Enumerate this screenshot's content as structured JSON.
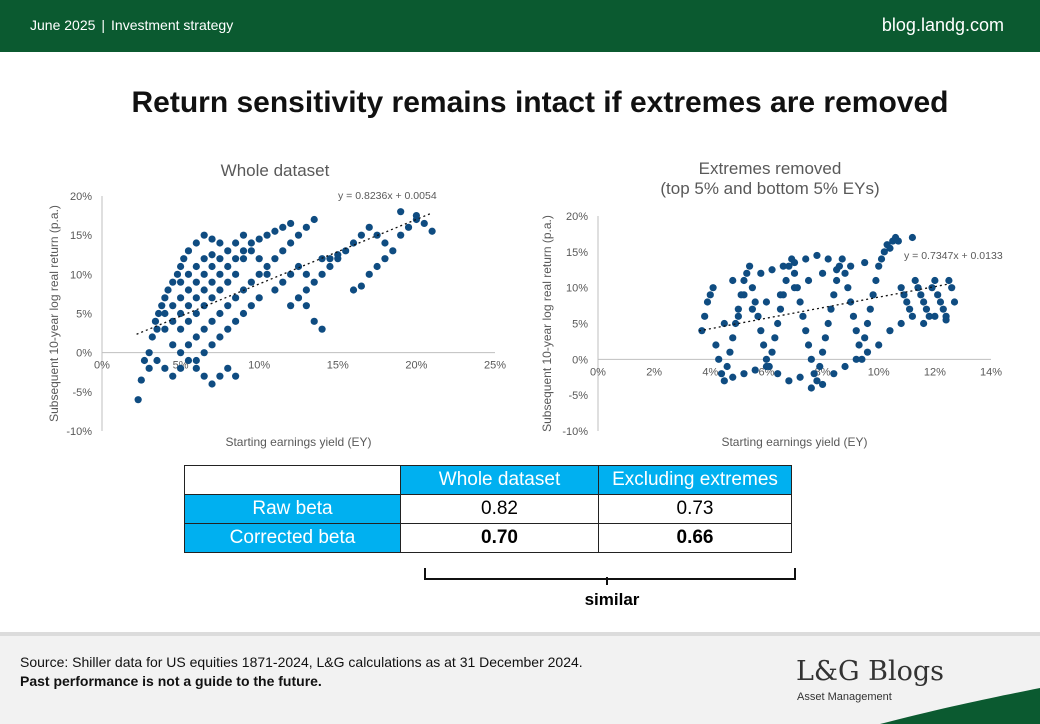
{
  "header": {
    "date": "June 2025",
    "section": "Investment strategy",
    "site": "blog.landg.com"
  },
  "title": "Return sensitivity remains intact if extremes are removed",
  "chart_data": [
    {
      "type": "scatter",
      "title": "Whole dataset",
      "xlabel": "Starting earnings yield (EY)",
      "ylabel": "Subsequent 10-year log real return (p.a.)",
      "xlim": [
        0,
        0.25
      ],
      "ylim": [
        -0.1,
        0.2
      ],
      "xticks": [
        "0%",
        "5%",
        "10%",
        "15%",
        "20%",
        "25%"
      ],
      "yticks": [
        "-10%",
        "-5%",
        "0%",
        "5%",
        "10%",
        "15%",
        "20%"
      ],
      "trendline": {
        "slope": 0.8236,
        "intercept": 0.0054,
        "x_range": [
          0.022,
          0.21
        ],
        "label": "y = 0.8236x + 0.0054"
      },
      "grid": false,
      "legend": "none",
      "color": "#0f4c81",
      "points": [
        [
          0.023,
          -0.06
        ],
        [
          0.025,
          -0.035
        ],
        [
          0.027,
          -0.01
        ],
        [
          0.03,
          0.0
        ],
        [
          0.032,
          0.02
        ],
        [
          0.034,
          0.04
        ],
        [
          0.036,
          0.05
        ],
        [
          0.038,
          0.06
        ],
        [
          0.04,
          0.07
        ],
        [
          0.042,
          0.08
        ],
        [
          0.045,
          0.09
        ],
        [
          0.048,
          0.1
        ],
        [
          0.05,
          0.11
        ],
        [
          0.052,
          0.12
        ],
        [
          0.055,
          0.13
        ],
        [
          0.045,
          0.06
        ],
        [
          0.05,
          0.07
        ],
        [
          0.055,
          0.08
        ],
        [
          0.06,
          0.09
        ],
        [
          0.065,
          0.1
        ],
        [
          0.07,
          0.11
        ],
        [
          0.075,
          0.12
        ],
        [
          0.08,
          0.13
        ],
        [
          0.085,
          0.14
        ],
        [
          0.09,
          0.15
        ],
        [
          0.06,
          0.05
        ],
        [
          0.065,
          0.06
        ],
        [
          0.07,
          0.07
        ],
        [
          0.075,
          0.08
        ],
        [
          0.08,
          0.09
        ],
        [
          0.085,
          0.1
        ],
        [
          0.05,
          0.03
        ],
        [
          0.055,
          0.04
        ],
        [
          0.06,
          0.02
        ],
        [
          0.065,
          0.03
        ],
        [
          0.07,
          0.04
        ],
        [
          0.075,
          0.05
        ],
        [
          0.08,
          0.06
        ],
        [
          0.085,
          0.07
        ],
        [
          0.09,
          0.08
        ],
        [
          0.095,
          0.09
        ],
        [
          0.1,
          0.1
        ],
        [
          0.105,
          0.11
        ],
        [
          0.11,
          0.12
        ],
        [
          0.115,
          0.13
        ],
        [
          0.12,
          0.14
        ],
        [
          0.125,
          0.15
        ],
        [
          0.13,
          0.16
        ],
        [
          0.135,
          0.17
        ],
        [
          0.11,
          0.08
        ],
        [
          0.115,
          0.09
        ],
        [
          0.12,
          0.1
        ],
        [
          0.125,
          0.11
        ],
        [
          0.13,
          0.1
        ],
        [
          0.135,
          0.09
        ],
        [
          0.14,
          0.1
        ],
        [
          0.145,
          0.11
        ],
        [
          0.15,
          0.12
        ],
        [
          0.155,
          0.13
        ],
        [
          0.16,
          0.14
        ],
        [
          0.165,
          0.15
        ],
        [
          0.17,
          0.16
        ],
        [
          0.175,
          0.15
        ],
        [
          0.18,
          0.14
        ],
        [
          0.185,
          0.13
        ],
        [
          0.19,
          0.15
        ],
        [
          0.195,
          0.16
        ],
        [
          0.2,
          0.17
        ],
        [
          0.205,
          0.165
        ],
        [
          0.21,
          0.155
        ],
        [
          0.19,
          0.18
        ],
        [
          0.2,
          0.175
        ],
        [
          0.17,
          0.1
        ],
        [
          0.175,
          0.11
        ],
        [
          0.18,
          0.12
        ],
        [
          0.16,
          0.08
        ],
        [
          0.165,
          0.085
        ],
        [
          0.13,
          0.06
        ],
        [
          0.135,
          0.04
        ],
        [
          0.14,
          0.03
        ],
        [
          0.03,
          -0.02
        ],
        [
          0.035,
          -0.01
        ],
        [
          0.04,
          -0.02
        ],
        [
          0.045,
          -0.03
        ],
        [
          0.05,
          -0.02
        ],
        [
          0.055,
          -0.01
        ],
        [
          0.06,
          -0.02
        ],
        [
          0.065,
          -0.03
        ],
        [
          0.07,
          -0.04
        ],
        [
          0.075,
          -0.03
        ],
        [
          0.08,
          -0.02
        ],
        [
          0.085,
          -0.03
        ],
        [
          0.06,
          0.14
        ],
        [
          0.065,
          0.15
        ],
        [
          0.07,
          0.145
        ],
        [
          0.075,
          0.14
        ],
        [
          0.09,
          0.12
        ],
        [
          0.095,
          0.13
        ],
        [
          0.1,
          0.12
        ],
        [
          0.105,
          0.1
        ],
        [
          0.1,
          0.07
        ],
        [
          0.095,
          0.06
        ],
        [
          0.09,
          0.05
        ],
        [
          0.085,
          0.04
        ],
        [
          0.08,
          0.03
        ],
        [
          0.075,
          0.02
        ],
        [
          0.07,
          0.01
        ],
        [
          0.065,
          0.0
        ],
        [
          0.06,
          -0.01
        ],
        [
          0.12,
          0.06
        ],
        [
          0.125,
          0.07
        ],
        [
          0.13,
          0.08
        ],
        [
          0.14,
          0.12
        ],
        [
          0.145,
          0.12
        ],
        [
          0.15,
          0.125
        ],
        [
          0.04,
          0.03
        ],
        [
          0.045,
          0.04
        ],
        [
          0.05,
          0.05
        ],
        [
          0.055,
          0.06
        ],
        [
          0.06,
          0.07
        ],
        [
          0.065,
          0.08
        ],
        [
          0.07,
          0.09
        ],
        [
          0.075,
          0.1
        ],
        [
          0.08,
          0.11
        ],
        [
          0.085,
          0.12
        ],
        [
          0.09,
          0.13
        ],
        [
          0.095,
          0.14
        ],
        [
          0.1,
          0.145
        ],
        [
          0.105,
          0.15
        ],
        [
          0.11,
          0.155
        ],
        [
          0.115,
          0.16
        ],
        [
          0.12,
          0.165
        ],
        [
          0.06,
          0.11
        ],
        [
          0.065,
          0.12
        ],
        [
          0.07,
          0.125
        ],
        [
          0.055,
          0.1
        ],
        [
          0.05,
          0.09
        ],
        [
          0.04,
          0.05
        ],
        [
          0.035,
          0.03
        ],
        [
          0.045,
          0.01
        ],
        [
          0.05,
          0.0
        ],
        [
          0.055,
          0.01
        ]
      ]
    },
    {
      "type": "scatter",
      "title": "Extremes removed",
      "subtitle": "(top 5% and bottom 5% EYs)",
      "xlabel": "Starting earnings yield (EY)",
      "ylabel": "Subsequent 10-year log real return (p.a.)",
      "xlim": [
        0,
        0.14
      ],
      "ylim": [
        -0.1,
        0.2
      ],
      "xticks": [
        "0%",
        "2%",
        "4%",
        "6%",
        "8%",
        "10%",
        "12%",
        "14%"
      ],
      "yticks": [
        "-10%",
        "-5%",
        "0%",
        "5%",
        "10%",
        "15%",
        "20%"
      ],
      "trendline": {
        "slope": 0.7347,
        "intercept": 0.0133,
        "x_range": [
          0.036,
          0.125
        ],
        "label": "y = 0.7347x + 0.0133"
      },
      "grid": false,
      "legend": "none",
      "color": "#0f4c81",
      "points": [
        [
          0.037,
          0.04
        ],
        [
          0.038,
          0.06
        ],
        [
          0.039,
          0.08
        ],
        [
          0.04,
          0.09
        ],
        [
          0.041,
          0.1
        ],
        [
          0.042,
          0.02
        ],
        [
          0.043,
          0.0
        ],
        [
          0.044,
          -0.02
        ],
        [
          0.045,
          -0.03
        ],
        [
          0.046,
          -0.01
        ],
        [
          0.047,
          0.01
        ],
        [
          0.048,
          0.03
        ],
        [
          0.049,
          0.05
        ],
        [
          0.05,
          0.07
        ],
        [
          0.051,
          0.09
        ],
        [
          0.052,
          0.11
        ],
        [
          0.053,
          0.12
        ],
        [
          0.054,
          0.13
        ],
        [
          0.055,
          0.1
        ],
        [
          0.056,
          0.08
        ],
        [
          0.057,
          0.06
        ],
        [
          0.058,
          0.04
        ],
        [
          0.059,
          0.02
        ],
        [
          0.06,
          0.0
        ],
        [
          0.061,
          -0.01
        ],
        [
          0.062,
          0.01
        ],
        [
          0.063,
          0.03
        ],
        [
          0.064,
          0.05
        ],
        [
          0.065,
          0.07
        ],
        [
          0.066,
          0.09
        ],
        [
          0.067,
          0.11
        ],
        [
          0.068,
          0.13
        ],
        [
          0.069,
          0.14
        ],
        [
          0.07,
          0.12
        ],
        [
          0.071,
          0.1
        ],
        [
          0.072,
          0.08
        ],
        [
          0.073,
          0.06
        ],
        [
          0.074,
          0.04
        ],
        [
          0.075,
          0.02
        ],
        [
          0.076,
          0.0
        ],
        [
          0.077,
          -0.02
        ],
        [
          0.078,
          -0.03
        ],
        [
          0.079,
          -0.01
        ],
        [
          0.08,
          0.01
        ],
        [
          0.081,
          0.03
        ],
        [
          0.082,
          0.05
        ],
        [
          0.083,
          0.07
        ],
        [
          0.084,
          0.09
        ],
        [
          0.085,
          0.11
        ],
        [
          0.086,
          0.13
        ],
        [
          0.087,
          0.14
        ],
        [
          0.088,
          0.12
        ],
        [
          0.089,
          0.1
        ],
        [
          0.09,
          0.08
        ],
        [
          0.091,
          0.06
        ],
        [
          0.092,
          0.04
        ],
        [
          0.093,
          0.02
        ],
        [
          0.094,
          0.0
        ],
        [
          0.095,
          0.03
        ],
        [
          0.096,
          0.05
        ],
        [
          0.097,
          0.07
        ],
        [
          0.098,
          0.09
        ],
        [
          0.099,
          0.11
        ],
        [
          0.1,
          0.13
        ],
        [
          0.101,
          0.14
        ],
        [
          0.102,
          0.15
        ],
        [
          0.103,
          0.16
        ],
        [
          0.104,
          0.155
        ],
        [
          0.105,
          0.165
        ],
        [
          0.106,
          0.17
        ],
        [
          0.107,
          0.165
        ],
        [
          0.108,
          0.1
        ],
        [
          0.109,
          0.09
        ],
        [
          0.11,
          0.08
        ],
        [
          0.111,
          0.07
        ],
        [
          0.112,
          0.17
        ],
        [
          0.113,
          0.11
        ],
        [
          0.114,
          0.1
        ],
        [
          0.115,
          0.09
        ],
        [
          0.116,
          0.08
        ],
        [
          0.117,
          0.07
        ],
        [
          0.118,
          0.06
        ],
        [
          0.119,
          0.1
        ],
        [
          0.12,
          0.11
        ],
        [
          0.121,
          0.09
        ],
        [
          0.122,
          0.08
        ],
        [
          0.123,
          0.07
        ],
        [
          0.124,
          0.06
        ],
        [
          0.125,
          0.11
        ],
        [
          0.126,
          0.1
        ],
        [
          0.127,
          0.08
        ],
        [
          0.045,
          0.05
        ],
        [
          0.05,
          0.06
        ],
        [
          0.055,
          0.07
        ],
        [
          0.06,
          0.08
        ],
        [
          0.065,
          0.09
        ],
        [
          0.07,
          0.1
        ],
        [
          0.075,
          0.11
        ],
        [
          0.08,
          0.12
        ],
        [
          0.085,
          0.125
        ],
        [
          0.09,
          0.13
        ],
        [
          0.095,
          0.135
        ],
        [
          0.048,
          0.11
        ],
        [
          0.052,
          0.09
        ],
        [
          0.058,
          0.12
        ],
        [
          0.062,
          0.125
        ],
        [
          0.066,
          0.13
        ],
        [
          0.07,
          0.135
        ],
        [
          0.074,
          0.14
        ],
        [
          0.078,
          0.145
        ],
        [
          0.082,
          0.14
        ],
        [
          0.048,
          -0.025
        ],
        [
          0.052,
          -0.02
        ],
        [
          0.056,
          -0.015
        ],
        [
          0.06,
          -0.01
        ],
        [
          0.064,
          -0.02
        ],
        [
          0.068,
          -0.03
        ],
        [
          0.072,
          -0.025
        ],
        [
          0.076,
          -0.04
        ],
        [
          0.08,
          -0.035
        ],
        [
          0.084,
          -0.02
        ],
        [
          0.088,
          -0.01
        ],
        [
          0.092,
          0.0
        ],
        [
          0.096,
          0.01
        ],
        [
          0.1,
          0.02
        ],
        [
          0.104,
          0.04
        ],
        [
          0.108,
          0.05
        ],
        [
          0.112,
          0.06
        ],
        [
          0.116,
          0.05
        ],
        [
          0.12,
          0.06
        ],
        [
          0.124,
          0.055
        ]
      ]
    }
  ],
  "table": {
    "headers": [
      "",
      "Whole dataset",
      "Excluding extremes"
    ],
    "rows": [
      {
        "label": "Raw beta",
        "whole": "0.82",
        "excluding": "0.73"
      },
      {
        "label": "Corrected beta",
        "whole": "0.70",
        "excluding": "0.66"
      }
    ]
  },
  "annotation": "similar",
  "footer": {
    "source": "Source: Shiller data for US equities 1871-2024, L&G calculations as at 31 December 2024.",
    "disclaimer": "Past performance is not a guide to the future.",
    "logo_main": "L&G Blogs",
    "logo_sub": "Asset Management"
  },
  "colors": {
    "brand_green": "#0b5a30",
    "header_cyan": "#00b0f0",
    "point": "#0f4c81"
  }
}
